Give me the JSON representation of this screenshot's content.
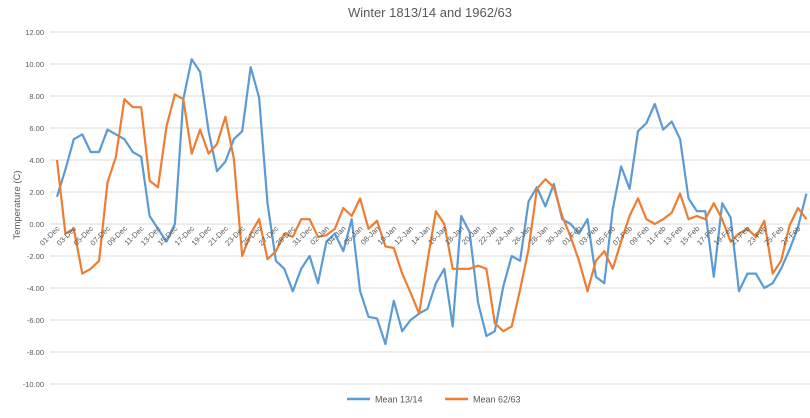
{
  "chart_data": {
    "type": "line",
    "title": "Winter 1813/14 and 1962/63",
    "xlabel": "",
    "ylabel": "Temperature (C)",
    "ylim": [
      -10,
      12
    ],
    "ytick_step": 2,
    "ytick_labels": [
      "12.00",
      "10.00",
      "8.00",
      "6.00",
      "4.00",
      "2.00",
      "0.00",
      "-2.00",
      "-4.00",
      "-6.00",
      "-8.00",
      "-10.00"
    ],
    "grid": true,
    "legend_position": "bottom",
    "x_tick_labels": [
      "01-Dec",
      "03-Dec",
      "05-Dec",
      "07-Dec",
      "09-Dec",
      "11-Dec",
      "13-Dec",
      "15-Dec",
      "17-Dec",
      "19-Dec",
      "21-Dec",
      "23-Dec",
      "25-Dec",
      "27-Dec",
      "29-Dec",
      "31-Dec",
      "02-Jan",
      "04-Jan",
      "06-Jan",
      "08-Jan",
      "10-Jan",
      "12-Jan",
      "14-Jan",
      "16-Jan",
      "18-Jan",
      "20-Jan",
      "22-Jan",
      "24-Jan",
      "26-Jan",
      "28-Jan",
      "30-Jan",
      "01-Feb",
      "03-Feb",
      "05-Feb",
      "07-Feb",
      "09-Feb",
      "11-Feb",
      "13-Feb",
      "15-Feb",
      "17-Feb",
      "19-Feb",
      "21-Feb",
      "23-Feb",
      "25-Feb",
      "27-Feb"
    ],
    "x_range": [
      "01-Dec",
      "28-Feb"
    ],
    "series": [
      {
        "name": "Mean 13/14",
        "color": "#5B9BD5",
        "values": [
          1.7,
          3.4,
          5.3,
          5.6,
          4.5,
          4.5,
          5.9,
          5.6,
          5.3,
          4.5,
          4.2,
          0.5,
          -0.3,
          -1.1,
          0.0,
          7.8,
          10.3,
          9.5,
          5.8,
          3.3,
          3.9,
          5.3,
          5.8,
          9.8,
          7.9,
          1.3,
          -2.3,
          -2.8,
          -4.2,
          -2.8,
          -2.0,
          -3.7,
          -1.1,
          -0.6,
          -1.7,
          0.3,
          -4.2,
          -5.8,
          -5.9,
          -7.5,
          -4.8,
          -6.7,
          -6.0,
          -5.6,
          -5.3,
          -3.7,
          -2.8,
          -6.4,
          0.5,
          -0.5,
          -4.9,
          -7.0,
          -6.7,
          -3.9,
          -2.0,
          -2.3,
          1.4,
          2.3,
          1.1,
          2.5,
          0.3,
          0.0,
          -0.6,
          0.3,
          -3.3,
          -3.7,
          0.9,
          3.6,
          2.2,
          5.8,
          6.3,
          7.5,
          5.9,
          6.4,
          5.3,
          1.6,
          0.8,
          0.8,
          -3.3,
          1.3,
          0.4,
          -4.2,
          -3.1,
          -3.1,
          -4.0,
          -3.7,
          -2.8,
          -1.6,
          -0.2,
          1.9
        ]
      },
      {
        "name": "Mean 62/63",
        "color": "#ED7D31",
        "values": [
          4.0,
          -0.6,
          -0.3,
          -3.1,
          -2.8,
          -2.3,
          2.6,
          4.2,
          7.8,
          7.3,
          7.3,
          2.7,
          2.3,
          6.1,
          8.1,
          7.8,
          4.4,
          5.9,
          4.4,
          5.0,
          6.7,
          4.1,
          -2.0,
          -0.6,
          0.3,
          -2.2,
          -1.7,
          -0.6,
          -0.8,
          0.3,
          0.3,
          -0.8,
          -0.7,
          -0.3,
          1.0,
          0.5,
          1.6,
          -0.3,
          0.2,
          -1.4,
          -1.5,
          -3.1,
          -4.3,
          -5.6,
          -2.3,
          0.8,
          0.0,
          -2.8,
          -2.8,
          -2.8,
          -2.6,
          -2.8,
          -6.2,
          -6.7,
          -6.4,
          -4.1,
          -1.6,
          2.2,
          2.8,
          2.3,
          0.5,
          -0.8,
          -2.3,
          -4.2,
          -2.3,
          -1.7,
          -2.8,
          -1.1,
          0.5,
          1.6,
          0.3,
          0.0,
          0.3,
          0.7,
          1.9,
          0.3,
          0.5,
          0.3,
          1.3,
          0.3,
          -1.1,
          -0.6,
          -0.3,
          -0.8,
          0.2,
          -3.1,
          -2.3,
          -0.1,
          1.0,
          0.3
        ]
      }
    ]
  }
}
